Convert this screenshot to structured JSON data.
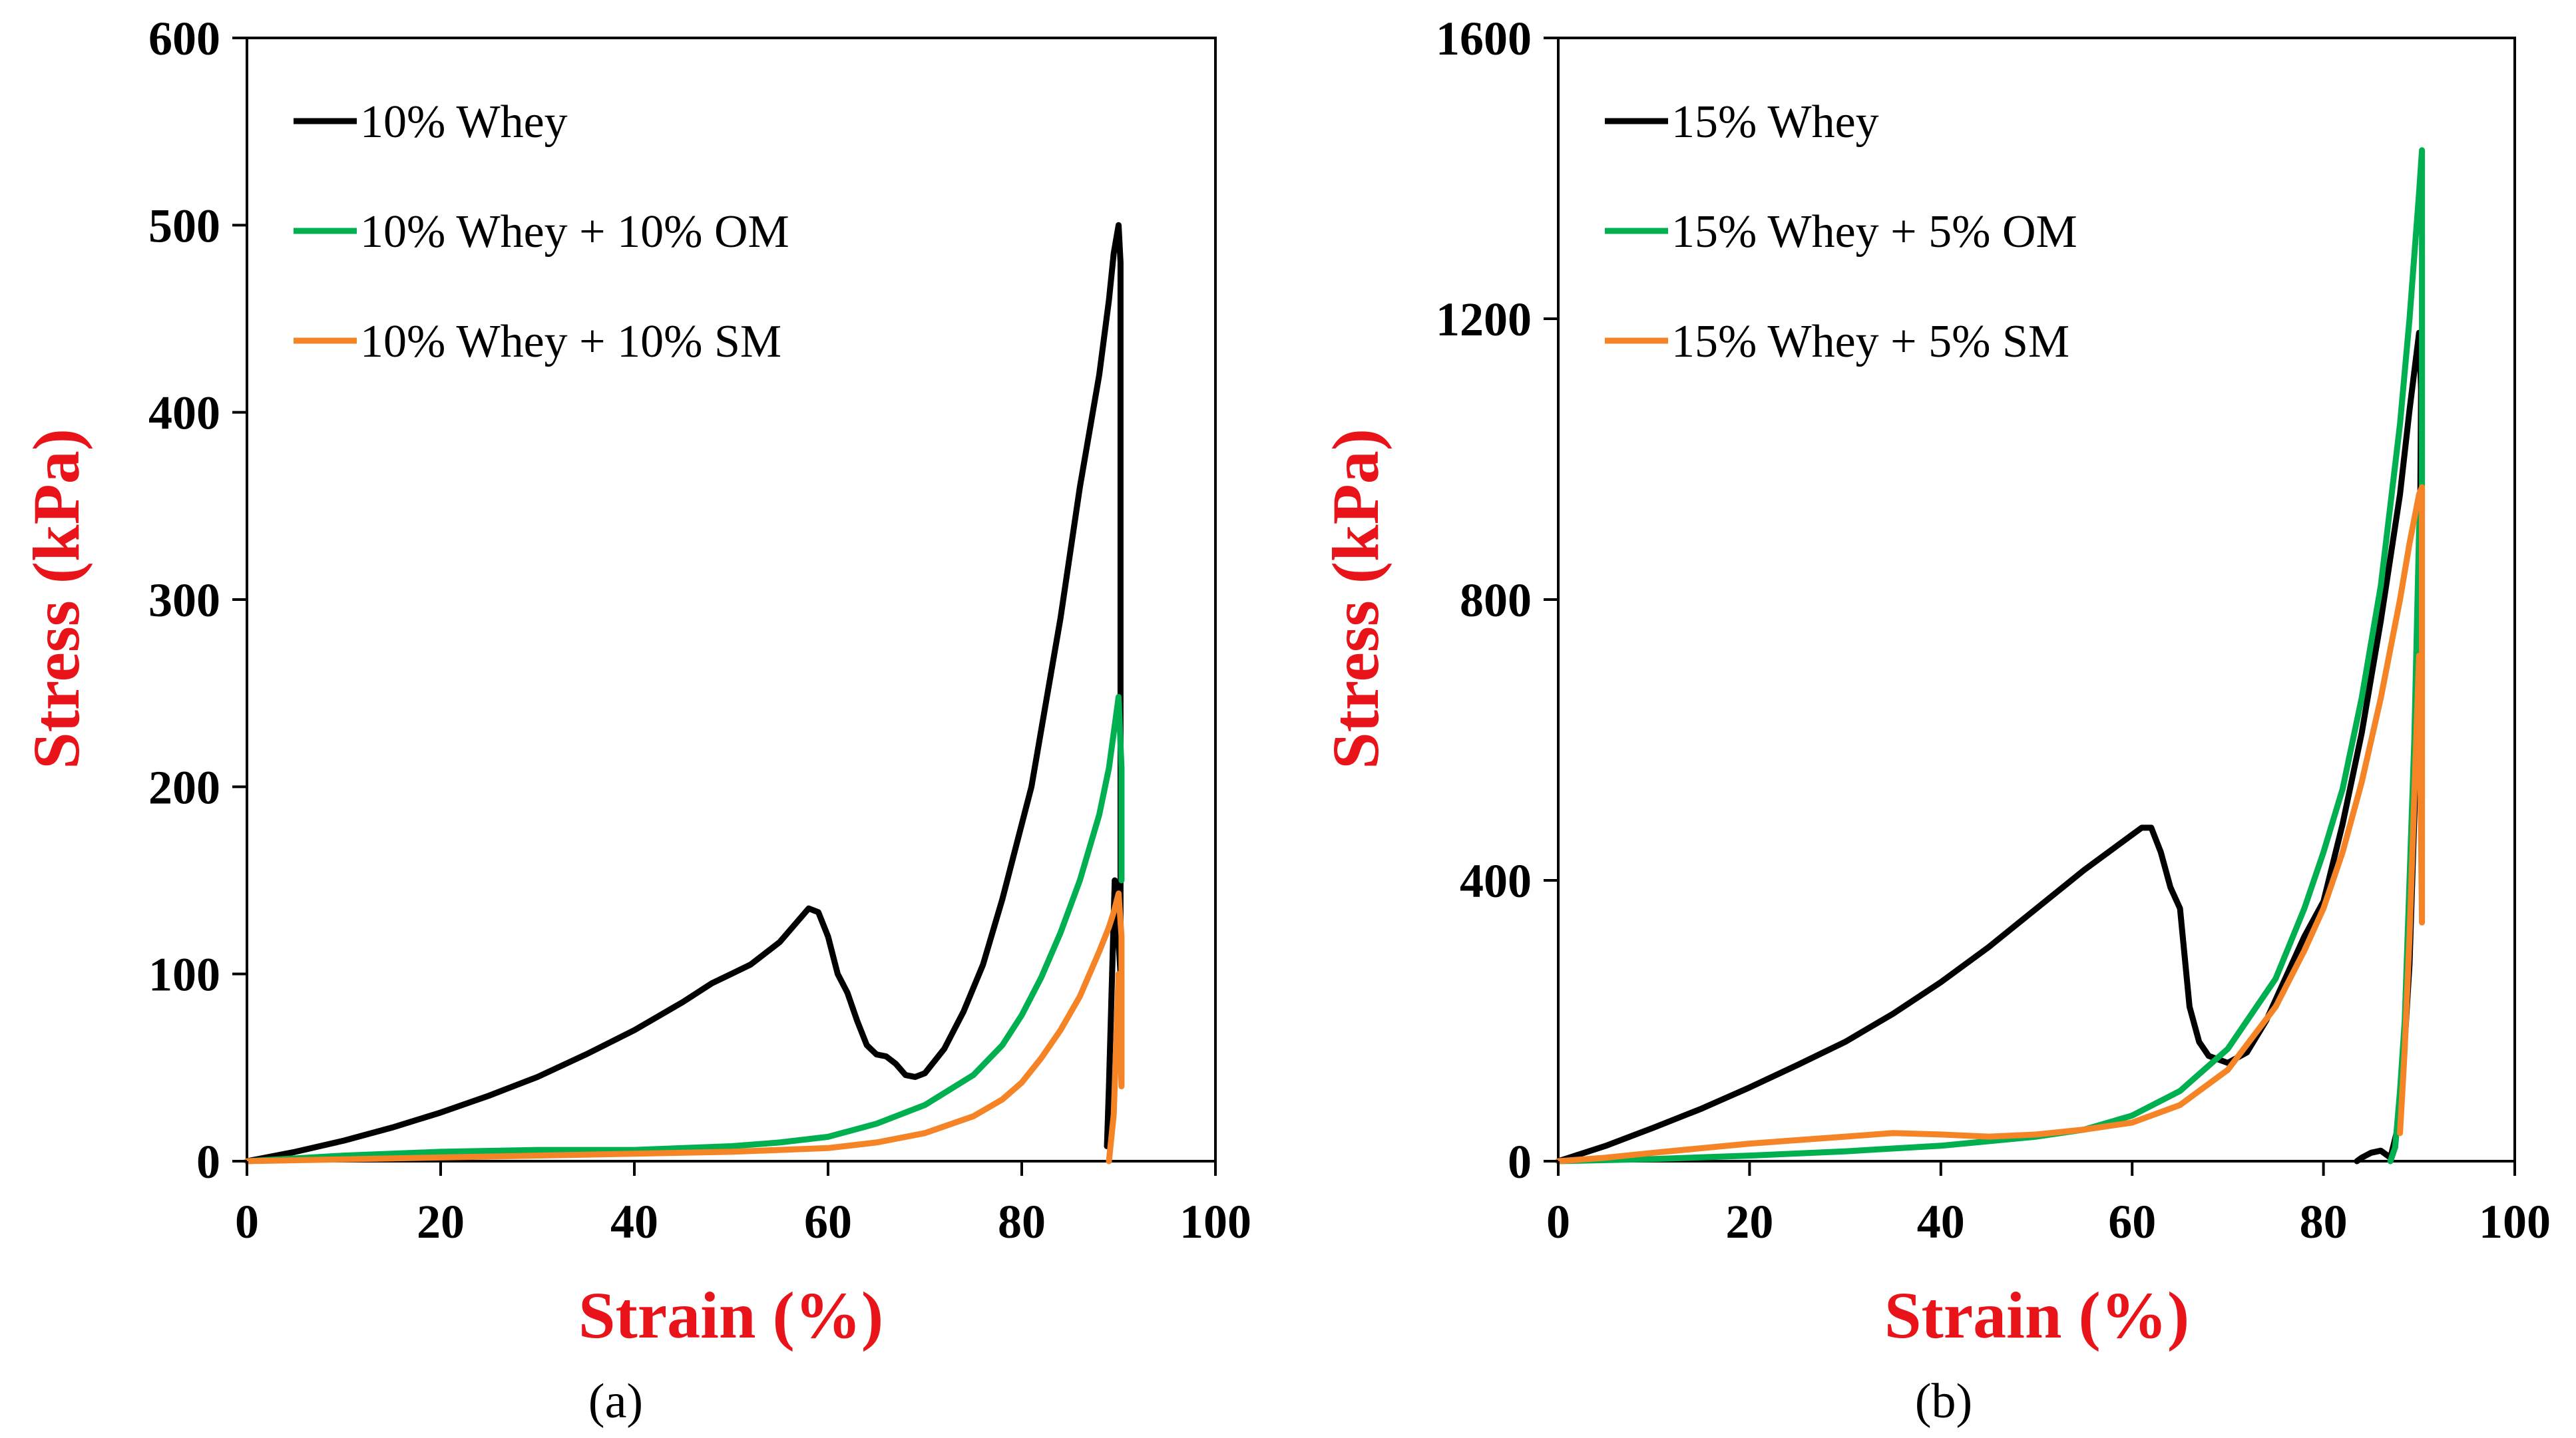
{
  "colors": {
    "black": "#000000",
    "green": "#00b050",
    "orange": "#f58427",
    "axis_title": "#e8141a"
  },
  "chart_data": [
    {
      "type": "line",
      "panel_label": "(a)",
      "xlabel": "Strain (%)",
      "ylabel": "Stress (kPa)",
      "xlim": [
        0,
        100
      ],
      "ylim": [
        0,
        600
      ],
      "x_ticks": [
        "0",
        "20",
        "40",
        "60",
        "80",
        "100"
      ],
      "y_ticks": [
        "0",
        "100",
        "200",
        "300",
        "400",
        "500",
        "600"
      ],
      "legend_position": "top-left",
      "series": [
        {
          "name": "10% Whey",
          "color": "#000000",
          "x": [
            0,
            5,
            10,
            15,
            20,
            25,
            30,
            35,
            40,
            45,
            48,
            50,
            52,
            55,
            58,
            59,
            60,
            61,
            62,
            63,
            64,
            65,
            66,
            67,
            68,
            69,
            70,
            72,
            74,
            76,
            78,
            80,
            81,
            82,
            84,
            86,
            88,
            89,
            89.5,
            90,
            90.2,
            90.2,
            89.6,
            89,
            88.8
          ],
          "y": [
            0,
            5,
            11,
            18,
            26,
            35,
            45,
            57,
            70,
            85,
            95,
            100,
            105,
            117,
            135,
            133,
            120,
            100,
            90,
            75,
            62,
            57,
            56,
            52,
            46,
            45,
            47,
            60,
            80,
            105,
            140,
            180,
            200,
            230,
            290,
            360,
            420,
            460,
            485,
            500,
            480,
            100,
            150,
            40,
            8
          ]
        },
        {
          "name": "10% Whey + 10% OM",
          "color": "#00b050",
          "x": [
            0,
            10,
            20,
            30,
            40,
            50,
            55,
            60,
            65,
            70,
            75,
            78,
            80,
            82,
            84,
            86,
            88,
            89,
            90,
            90.3,
            90.3
          ],
          "y": [
            0,
            3,
            5,
            6,
            6,
            8,
            10,
            13,
            20,
            30,
            46,
            62,
            78,
            98,
            122,
            150,
            185,
            210,
            248,
            210,
            150
          ]
        },
        {
          "name": "10% Whey + 10% SM",
          "color": "#f58427",
          "x": [
            0,
            10,
            20,
            30,
            40,
            50,
            60,
            65,
            70,
            75,
            78,
            80,
            82,
            84,
            86,
            88,
            89,
            89.5,
            90,
            90.3,
            90.3,
            90,
            89.5,
            89
          ],
          "y": [
            0,
            1,
            2,
            3,
            4,
            5,
            7,
            10,
            15,
            24,
            33,
            42,
            55,
            70,
            88,
            112,
            125,
            133,
            143,
            120,
            40,
            100,
            25,
            0
          ]
        }
      ]
    },
    {
      "type": "line",
      "panel_label": "(b)",
      "xlabel": "Strain (%)",
      "ylabel": "Stress (kPa)",
      "xlim": [
        0,
        100
      ],
      "ylim": [
        0,
        1600
      ],
      "x_ticks": [
        "0",
        "20",
        "40",
        "60",
        "80",
        "100"
      ],
      "y_ticks": [
        "0",
        "400",
        "800",
        "1200",
        "1600"
      ],
      "legend_position": "top-left",
      "series": [
        {
          "name": "15% Whey",
          "color": "#000000",
          "x": [
            0,
            5,
            10,
            15,
            20,
            25,
            30,
            35,
            40,
            45,
            50,
            55,
            58,
            60,
            61,
            62,
            63,
            64,
            65,
            66,
            67,
            68,
            70,
            72,
            74,
            76,
            78,
            80,
            82,
            84,
            86,
            88,
            89,
            90,
            90.2,
            90,
            89,
            88,
            87,
            86,
            85,
            84,
            83.5
          ],
          "y": [
            0,
            22,
            48,
            75,
            105,
            137,
            170,
            210,
            255,
            305,
            360,
            415,
            445,
            465,
            475,
            475,
            440,
            390,
            360,
            220,
            170,
            150,
            140,
            155,
            200,
            260,
            320,
            370,
            480,
            610,
            770,
            950,
            1070,
            1180,
            1100,
            700,
            280,
            60,
            5,
            15,
            12,
            5,
            0
          ]
        },
        {
          "name": "15% Whey + 5% OM",
          "color": "#00b050",
          "x": [
            0,
            10,
            20,
            30,
            40,
            50,
            55,
            60,
            65,
            70,
            75,
            78,
            80,
            82,
            84,
            86,
            88,
            89,
            90,
            90.3,
            90.3,
            90,
            89.5,
            89,
            88.5,
            88,
            87.5,
            87
          ],
          "y": [
            0,
            3,
            8,
            14,
            22,
            35,
            45,
            65,
            100,
            160,
            260,
            360,
            440,
            530,
            660,
            820,
            1050,
            1200,
            1380,
            1440,
            960,
            900,
            600,
            400,
            200,
            100,
            20,
            0
          ]
        },
        {
          "name": "15% Whey + 5% SM",
          "color": "#f58427",
          "x": [
            0,
            5,
            10,
            20,
            30,
            35,
            40,
            45,
            50,
            55,
            60,
            65,
            70,
            75,
            78,
            80,
            82,
            84,
            86,
            88,
            89,
            90,
            90.3,
            90.3,
            90,
            89.5,
            89,
            88.5,
            88
          ],
          "y": [
            0,
            5,
            12,
            25,
            35,
            40,
            38,
            35,
            38,
            45,
            55,
            80,
            130,
            220,
            300,
            360,
            440,
            540,
            660,
            800,
            880,
            950,
            960,
            340,
            720,
            520,
            320,
            160,
            40
          ]
        }
      ]
    }
  ]
}
